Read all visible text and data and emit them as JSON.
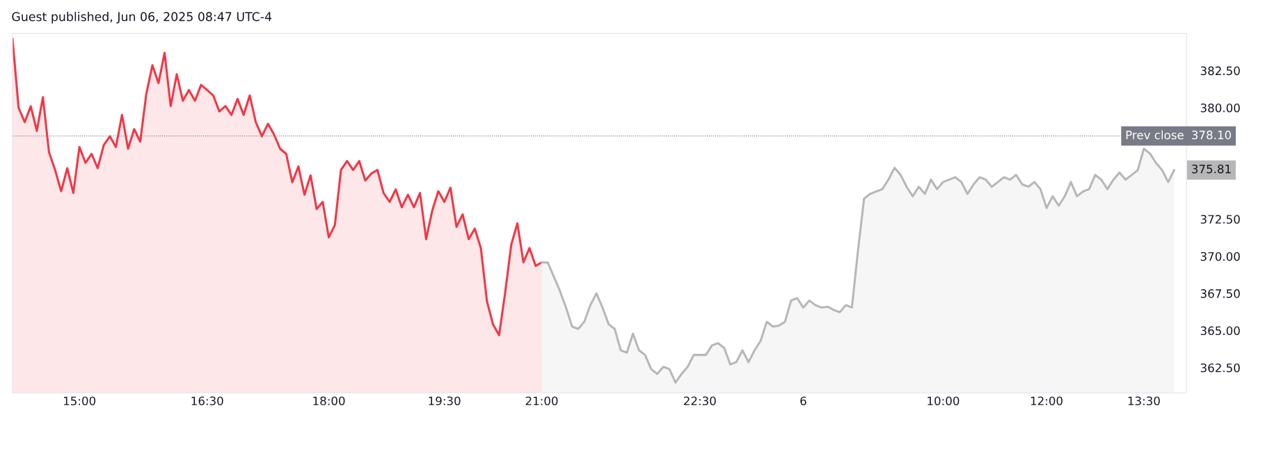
{
  "chart_data": {
    "type": "area",
    "title": "Guest published, Jun 06, 2025 08:47 UTC-4",
    "categories": [
      null,
      null,
      null,
      null,
      null,
      null,
      null,
      null,
      null,
      null,
      null,
      "15:00",
      null,
      null,
      null,
      null,
      null,
      null,
      null,
      null,
      null,
      null,
      null,
      null,
      null,
      null,
      null,
      null,
      null,
      null,
      null,
      null,
      "16:30",
      null,
      null,
      null,
      null,
      null,
      null,
      null,
      null,
      null,
      null,
      null,
      null,
      null,
      null,
      null,
      null,
      null,
      null,
      null,
      "18:00",
      null,
      null,
      null,
      null,
      null,
      null,
      null,
      null,
      null,
      null,
      null,
      null,
      null,
      null,
      null,
      null,
      null,
      null,
      "19:30",
      null,
      null,
      null,
      null,
      null,
      null,
      null,
      null,
      null,
      null,
      null,
      null,
      null,
      null,
      null,
      "21:00",
      null,
      null,
      null,
      null,
      null,
      null,
      null,
      null,
      null,
      null,
      null,
      null,
      null,
      null,
      null,
      null,
      null,
      null,
      null,
      null,
      null,
      null,
      null,
      null,
      null,
      "22:30",
      null,
      null,
      null,
      null,
      null,
      null,
      null,
      null,
      null,
      null,
      null,
      null,
      null,
      null,
      null,
      null,
      "6",
      null,
      null,
      null,
      null,
      null,
      null,
      null,
      null,
      null,
      null,
      null,
      null,
      null,
      null,
      null,
      null,
      null,
      null,
      null,
      null,
      null,
      null,
      "10:00",
      null,
      null,
      null,
      null,
      null,
      null,
      null,
      null,
      null,
      null,
      null,
      null,
      null,
      null,
      null,
      null,
      "12:00",
      null,
      null,
      null,
      null,
      null,
      null,
      null,
      null,
      null,
      null,
      null,
      null,
      null,
      null,
      null,
      "13:30",
      null,
      null,
      null,
      null,
      null
    ],
    "series": [
      {
        "color": "#f23645",
        "values": [
          384.65,
          380.0,
          379.03,
          380.1,
          378.44,
          380.71,
          377.0,
          375.81,
          374.38,
          375.93,
          374.26,
          377.36,
          376.29,
          376.89,
          375.93,
          377.48,
          378.08,
          377.36,
          379.52,
          377.24,
          378.56,
          377.72,
          380.95,
          382.86,
          381.66,
          383.7,
          380.11,
          382.26,
          380.47,
          381.19,
          380.47,
          381.54,
          381.19,
          380.83,
          379.75,
          380.11,
          379.52,
          380.59,
          379.52,
          380.83,
          379.03,
          378.08,
          378.92,
          378.2,
          377.24,
          376.89,
          374.98,
          376.05,
          374.14,
          375.45,
          373.18,
          373.66,
          371.27,
          372.11,
          375.81,
          376.41,
          375.81,
          376.41,
          375.1,
          375.57,
          375.81,
          374.26,
          373.66,
          374.5,
          373.3,
          374.14,
          373.3,
          374.26,
          371.15,
          373.06,
          374.38,
          373.66,
          374.62,
          371.98,
          372.82,
          371.15,
          371.86,
          370.55,
          366.97,
          365.41,
          364.69,
          367.57,
          370.79,
          372.22,
          369.59,
          370.55,
          369.35,
          369.59,
          null,
          null,
          null,
          null,
          null,
          null,
          null,
          null,
          null,
          null,
          null,
          null,
          null,
          null,
          null,
          null,
          null,
          null,
          null,
          null,
          null,
          null,
          null,
          null,
          null,
          null,
          null,
          null,
          null,
          null,
          null,
          null,
          null,
          null,
          null,
          null,
          null,
          null,
          null,
          null,
          null,
          null,
          null,
          null,
          null,
          null,
          null,
          null,
          null,
          null,
          null,
          null,
          null,
          null,
          null,
          null,
          null,
          null,
          null,
          null,
          null,
          null,
          null,
          null,
          null,
          null,
          null,
          null,
          null,
          null,
          null,
          null,
          null,
          null,
          null,
          null,
          null,
          null,
          null,
          null,
          null,
          null,
          null,
          null,
          null,
          null,
          null,
          null,
          null,
          null,
          null,
          null,
          null,
          null,
          null,
          null,
          null,
          null,
          null,
          null,
          null,
          null,
          null,
          null
        ]
      },
      {
        "color": "#b7b7b7",
        "values": [
          null,
          null,
          null,
          null,
          null,
          null,
          null,
          null,
          null,
          null,
          null,
          null,
          null,
          null,
          null,
          null,
          null,
          null,
          null,
          null,
          null,
          null,
          null,
          null,
          null,
          null,
          null,
          null,
          null,
          null,
          null,
          null,
          null,
          null,
          null,
          null,
          null,
          null,
          null,
          null,
          null,
          null,
          null,
          null,
          null,
          null,
          null,
          null,
          null,
          null,
          null,
          null,
          null,
          null,
          null,
          null,
          null,
          null,
          null,
          null,
          null,
          null,
          null,
          null,
          null,
          null,
          null,
          null,
          null,
          null,
          null,
          null,
          null,
          null,
          null,
          null,
          null,
          null,
          null,
          null,
          null,
          null,
          null,
          null,
          null,
          null,
          null,
          369.59,
          369.58,
          368.62,
          367.66,
          366.55,
          365.27,
          365.11,
          365.59,
          366.71,
          367.5,
          366.55,
          365.43,
          365.11,
          363.67,
          363.51,
          364.79,
          363.67,
          363.36,
          362.4,
          362.08,
          362.56,
          362.4,
          361.5,
          362.08,
          362.56,
          363.36,
          363.36,
          363.36,
          364.0,
          364.15,
          363.83,
          362.72,
          362.88,
          363.67,
          362.88,
          363.67,
          364.31,
          365.59,
          365.27,
          365.33,
          365.59,
          367.02,
          367.18,
          366.55,
          367.02,
          366.71,
          366.55,
          366.61,
          366.39,
          366.23,
          366.71,
          366.55,
          370.38,
          373.88,
          374.2,
          374.36,
          374.52,
          375.16,
          375.96,
          375.48,
          374.68,
          374.04,
          374.68,
          374.2,
          375.16,
          374.52,
          375.0,
          375.16,
          375.32,
          375.0,
          374.2,
          374.84,
          375.32,
          375.16,
          374.68,
          375.0,
          375.32,
          375.16,
          375.48,
          374.84,
          374.68,
          375.0,
          374.52,
          373.25,
          374.04,
          373.41,
          374.04,
          375.0,
          374.04,
          374.36,
          374.52,
          375.48,
          375.16,
          374.52,
          375.16,
          375.64,
          375.16,
          375.48,
          375.8,
          377.24,
          376.92,
          376.28,
          375.8,
          375.0,
          375.81
        ]
      }
    ],
    "ylim": [
      360.8,
      385
    ],
    "yticks": [
      {
        "value": 362.5,
        "label": "362.50"
      },
      {
        "value": 365,
        "label": "365.00"
      },
      {
        "value": 367.5,
        "label": "367.50"
      },
      {
        "value": 370,
        "label": "370.00"
      },
      {
        "value": 372.5,
        "label": "372.50"
      },
      {
        "value": 380,
        "label": "380.00"
      },
      {
        "value": 382.5,
        "label": "382.50"
      }
    ],
    "ref_lines": [
      {
        "axis": "y",
        "value": 378.1,
        "label": "Prev close",
        "color": "#787b86",
        "line_style": "dotted"
      }
    ],
    "annotations": [
      "378.10",
      "375.81"
    ],
    "grid": false,
    "legend": false
  }
}
